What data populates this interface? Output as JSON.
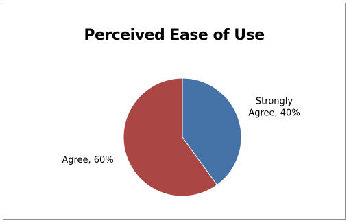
{
  "chart_data": {
    "type": "pie",
    "title": "Perceived Ease of Use",
    "slices": [
      {
        "label_lines": [
          "Strongly",
          "Agree, 40%"
        ],
        "value": 40,
        "color": "#4572a7"
      },
      {
        "label_lines": [
          "Agree, 60%"
        ],
        "value": 60,
        "color": "#aa4643"
      }
    ],
    "start": "12 o'clock",
    "direction": "clockwise",
    "legend": "none",
    "data_labels": "outside"
  }
}
